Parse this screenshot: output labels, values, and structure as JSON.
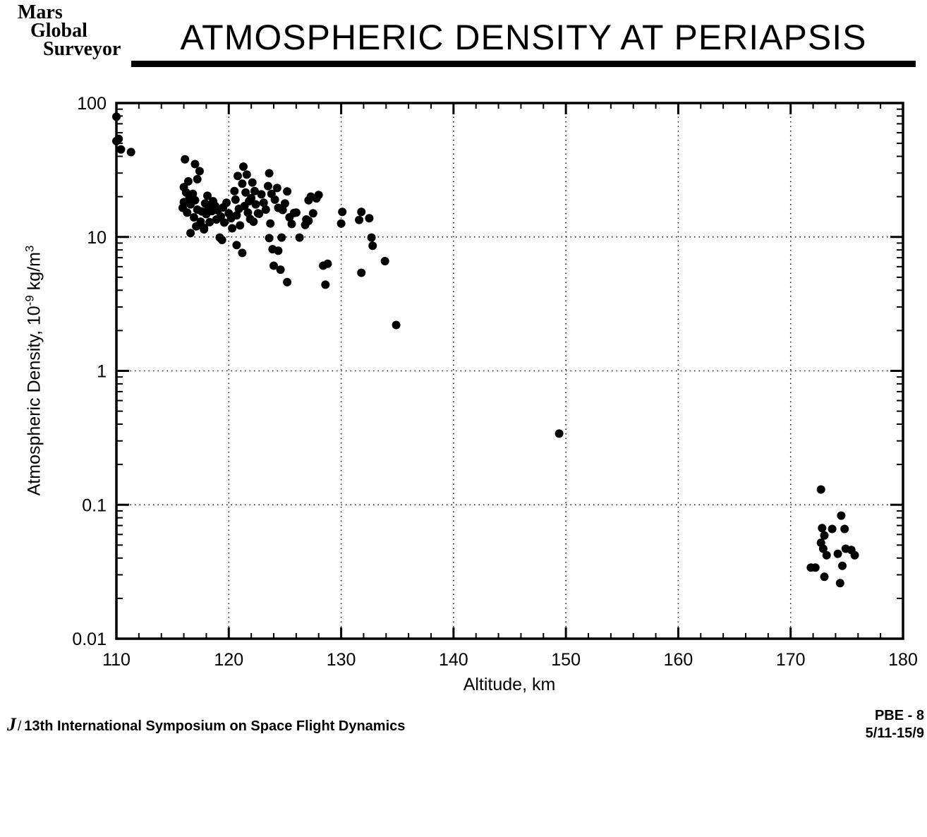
{
  "header": {
    "logo_lines": [
      "Mars",
      "Global",
      "Surveyor"
    ],
    "title": "ATMOSPHERIC DENSITY AT PERIAPSIS"
  },
  "footer": {
    "left_initial": "J",
    "left_separator": "/",
    "left_text": "13th International Symposium on Space Flight Dynamics",
    "right_line1": "PBE  -  8",
    "right_line2": "5/11-15/9"
  },
  "colors": {
    "background": "#ffffff",
    "ink": "#000000"
  },
  "chart_data": {
    "type": "scatter",
    "title": "ATMOSPHERIC DENSITY AT PERIAPSIS",
    "xlabel": "Altitude,  km",
    "ylabel": "Atmospheric Density,  10⁻⁹ kg/m³",
    "ylabel_parts": {
      "prefix": "Atmospheric Density,  10",
      "exponent": "-9",
      "mid": " kg/m",
      "exponent2": "3"
    },
    "xlim": [
      110,
      180
    ],
    "ylim": [
      0.01,
      100
    ],
    "yscale": "log",
    "grid": "dotted",
    "legend": "none",
    "x_major_ticks": [
      110,
      120,
      130,
      140,
      150,
      160,
      170,
      180
    ],
    "x_tick_labels": [
      "110",
      "120",
      "130",
      "140",
      "150",
      "160",
      "170",
      "180"
    ],
    "x_minor_step_km": 2,
    "y_major_ticks": [
      100,
      10,
      1,
      0.1,
      0.01
    ],
    "y_tick_labels": [
      "100",
      "10",
      "1",
      "0.1",
      "0.01"
    ],
    "grid_x": [
      120,
      130,
      140,
      150,
      160,
      170
    ],
    "grid_y": [
      10,
      1,
      0.1
    ],
    "marker": {
      "shape": "circle",
      "radius_px": 6,
      "color": "#000000"
    },
    "points_alt_km_vs_density": [
      [
        110.0,
        79
      ],
      [
        110.2,
        54
      ],
      [
        110.0,
        52
      ],
      [
        110.4,
        45
      ],
      [
        111.3,
        43
      ],
      [
        116.1,
        38
      ],
      [
        117.0,
        35
      ],
      [
        117.4,
        31
      ],
      [
        117.2,
        27
      ],
      [
        116.4,
        26
      ],
      [
        116.0,
        23.5
      ],
      [
        116.2,
        21.5
      ],
      [
        116.5,
        19.8
      ],
      [
        116.0,
        18.2
      ],
      [
        115.9,
        16.5
      ],
      [
        116.3,
        15.2
      ],
      [
        116.6,
        17.5
      ],
      [
        116.8,
        21
      ],
      [
        117.0,
        18.8
      ],
      [
        117.2,
        16
      ],
      [
        116.9,
        14
      ],
      [
        117.5,
        13
      ],
      [
        117.1,
        12
      ],
      [
        117.8,
        11.7
      ],
      [
        117.6,
        15.5
      ],
      [
        117.9,
        17.8
      ],
      [
        118.1,
        20.3
      ],
      [
        118.0,
        14.8
      ],
      [
        118.3,
        12.9
      ],
      [
        118.2,
        16.8
      ],
      [
        116.6,
        10.7
      ],
      [
        117.8,
        11.4
      ],
      [
        118.6,
        18.5
      ],
      [
        118.5,
        15.6
      ],
      [
        118.9,
        13.5
      ],
      [
        118.8,
        17
      ],
      [
        119.2,
        9.9
      ],
      [
        119.4,
        9.5
      ],
      [
        119.0,
        15.8
      ],
      [
        119.3,
        14.2
      ],
      [
        119.5,
        16.6
      ],
      [
        119.6,
        12.8
      ],
      [
        119.8,
        18
      ],
      [
        120.0,
        15
      ],
      [
        120.3,
        11.6
      ],
      [
        120.2,
        13.8
      ],
      [
        120.8,
        28.5
      ],
      [
        120.5,
        22
      ],
      [
        120.6,
        19
      ],
      [
        120.9,
        16.2
      ],
      [
        120.7,
        14.5
      ],
      [
        121.0,
        12.2
      ],
      [
        120.7,
        8.7
      ],
      [
        121.2,
        7.6
      ],
      [
        121.3,
        33.5
      ],
      [
        121.6,
        29.2
      ],
      [
        121.2,
        25
      ],
      [
        121.5,
        21.5
      ],
      [
        121.8,
        18.5
      ],
      [
        121.4,
        17
      ],
      [
        121.7,
        15.2
      ],
      [
        121.9,
        13.6
      ],
      [
        122.1,
        25.5
      ],
      [
        122.3,
        22
      ],
      [
        122.0,
        19.5
      ],
      [
        122.4,
        17.5
      ],
      [
        122.6,
        15
      ],
      [
        122.7,
        14.9
      ],
      [
        122.2,
        13
      ],
      [
        122.9,
        20.8
      ],
      [
        123.1,
        18
      ],
      [
        123.3,
        16
      ],
      [
        123.6,
        29.9
      ],
      [
        123.5,
        24
      ],
      [
        123.8,
        21
      ],
      [
        123.7,
        12.6
      ],
      [
        123.6,
        9.8
      ],
      [
        123.9,
        8.1
      ],
      [
        124.0,
        6.1
      ],
      [
        124.3,
        23.2
      ],
      [
        124.1,
        19
      ],
      [
        124.4,
        16.5
      ],
      [
        124.7,
        9.9
      ],
      [
        124.4,
        7.9
      ],
      [
        124.6,
        5.7
      ],
      [
        125.2,
        4.6
      ],
      [
        124.8,
        15.9
      ],
      [
        125.2,
        21.9
      ],
      [
        125.0,
        17.8
      ],
      [
        125.4,
        14
      ],
      [
        125.8,
        15.1
      ],
      [
        125.6,
        12.5
      ],
      [
        126.3,
        9.9
      ],
      [
        126.9,
        13.5
      ],
      [
        126.8,
        12.3
      ],
      [
        126.0,
        15.2
      ],
      [
        127.5,
        15
      ],
      [
        127.1,
        13.2
      ],
      [
        127.3,
        20
      ],
      [
        128.0,
        20.6
      ],
      [
        127.1,
        18.8
      ],
      [
        127.8,
        19.4
      ],
      [
        128.4,
        6.1
      ],
      [
        128.8,
        6.3
      ],
      [
        128.6,
        4.4
      ],
      [
        130.1,
        15.4
      ],
      [
        130.0,
        12.6
      ],
      [
        131.8,
        15.4
      ],
      [
        131.6,
        13.4
      ],
      [
        132.5,
        13.8
      ],
      [
        132.7,
        9.9
      ],
      [
        132.8,
        8.6
      ],
      [
        133.9,
        6.6
      ],
      [
        131.8,
        5.4
      ],
      [
        134.9,
        2.2
      ],
      [
        149.4,
        0.34
      ],
      [
        172.7,
        0.13
      ],
      [
        174.5,
        0.083
      ],
      [
        172.8,
        0.067
      ],
      [
        173.7,
        0.066
      ],
      [
        174.8,
        0.066
      ],
      [
        173.0,
        0.059
      ],
      [
        172.7,
        0.052
      ],
      [
        172.9,
        0.047
      ],
      [
        173.2,
        0.042
      ],
      [
        174.2,
        0.043
      ],
      [
        174.9,
        0.047
      ],
      [
        175.4,
        0.046
      ],
      [
        175.7,
        0.042
      ],
      [
        174.6,
        0.035
      ],
      [
        171.8,
        0.034
      ],
      [
        172.2,
        0.034
      ],
      [
        173.0,
        0.029
      ],
      [
        174.4,
        0.026
      ]
    ]
  }
}
